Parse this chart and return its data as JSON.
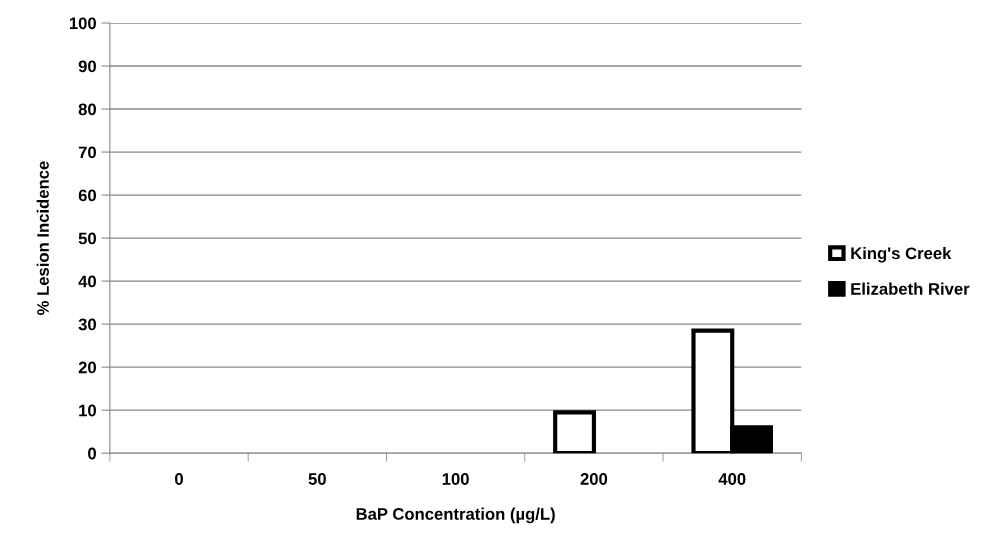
{
  "chart_data": {
    "type": "bar",
    "xlabel": "BaP Concentration (µg/L)",
    "ylabel": "% Lesion Incidence",
    "categories": [
      "0",
      "50",
      "100",
      "200",
      "400"
    ],
    "series": [
      {
        "name": "King's Creek",
        "color": "#ffffff",
        "values": [
          0,
          0,
          0,
          9.5,
          28.5
        ]
      },
      {
        "name": "Elizabeth River",
        "color": "#000000",
        "values": [
          0,
          0,
          0,
          0,
          6
        ]
      }
    ],
    "ylim": [
      0,
      100
    ],
    "yticks": [
      0,
      10,
      20,
      30,
      40,
      50,
      60,
      70,
      80,
      90,
      100
    ],
    "grid": "y",
    "legend": "right"
  }
}
